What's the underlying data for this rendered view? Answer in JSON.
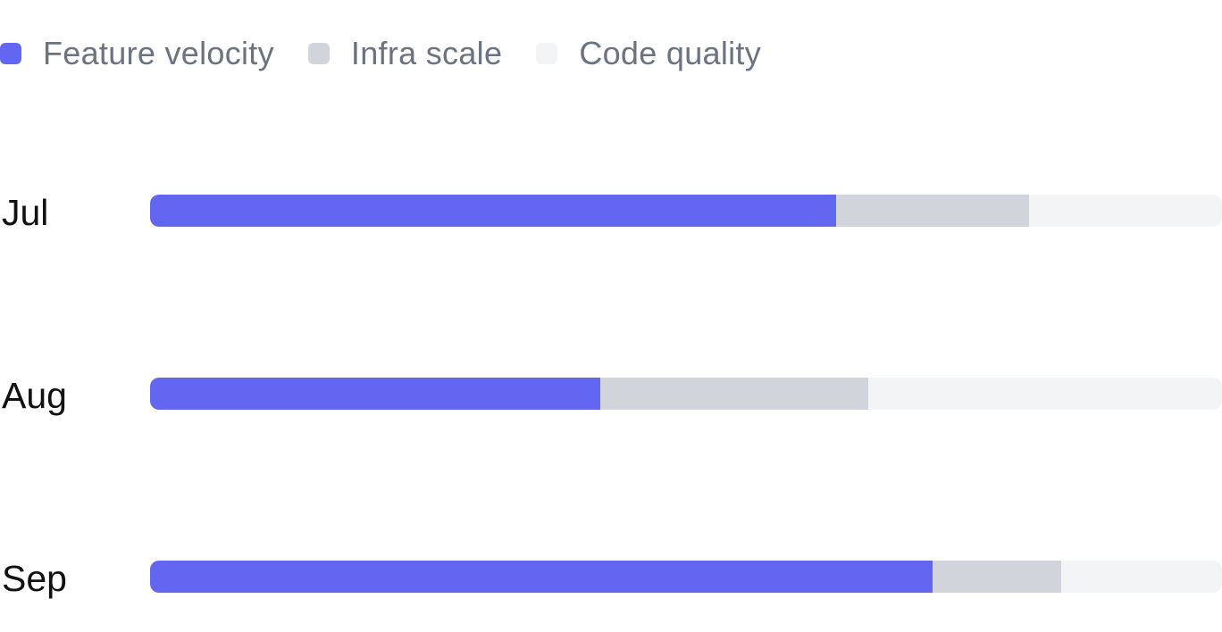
{
  "chart_data": {
    "type": "bar",
    "orientation": "horizontal",
    "stacked": true,
    "categories": [
      "Jul",
      "Aug",
      "Sep"
    ],
    "series": [
      {
        "name": "Feature velocity",
        "color": "#6366f1",
        "values": [
          0.64,
          0.42,
          0.73
        ]
      },
      {
        "name": "Infra scale",
        "color": "#d1d5db",
        "values": [
          0.18,
          0.25,
          0.12
        ]
      },
      {
        "name": "Code quality",
        "color": "#f3f4f6",
        "values": [
          0.18,
          0.33,
          0.15
        ]
      }
    ],
    "title": "",
    "xlabel": "",
    "ylabel": "",
    "xlim": [
      0,
      1
    ],
    "grid": false,
    "legend": "top-left"
  }
}
